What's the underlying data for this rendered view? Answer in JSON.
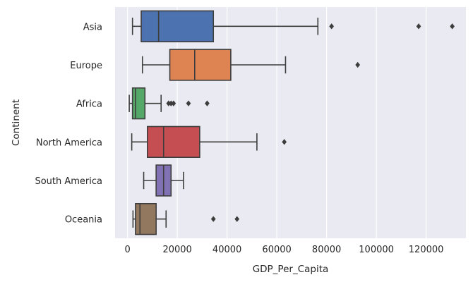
{
  "chart_data": {
    "type": "box",
    "orientation": "horizontal",
    "xlabel": "GDP_Per_Capita",
    "ylabel": "Continent",
    "xlim": [
      -5000,
      136000
    ],
    "xticks": [
      0,
      20000,
      40000,
      60000,
      80000,
      100000,
      120000
    ],
    "grid": true,
    "background_color": "#eaeaf2",
    "categories": [
      "Asia",
      "Europe",
      "Africa",
      "North America",
      "South America",
      "Oceania"
    ],
    "series": [
      {
        "category": "Asia",
        "color": "#4c72b0",
        "whisker_low": 2000,
        "q1": 5500,
        "median": 12500,
        "q3": 34500,
        "whisker_high": 76500,
        "outliers": [
          82000,
          117000,
          130500
        ]
      },
      {
        "category": "Europe",
        "color": "#dd8452",
        "whisker_low": 6000,
        "q1": 17000,
        "median": 27000,
        "q3": 41500,
        "whisker_high": 63500,
        "outliers": [
          92500
        ]
      },
      {
        "category": "Africa",
        "color": "#55a868",
        "whisker_low": 700,
        "q1": 2000,
        "median": 3200,
        "q3": 7000,
        "whisker_high": 13500,
        "outliers": [
          16500,
          17500,
          18500,
          24500,
          32000
        ]
      },
      {
        "category": "North America",
        "color": "#c44e52",
        "whisker_low": 1700,
        "q1": 8000,
        "median": 14500,
        "q3": 29000,
        "whisker_high": 52000,
        "outliers": [
          63000
        ]
      },
      {
        "category": "South America",
        "color": "#8172b3",
        "whisker_low": 6500,
        "q1": 11500,
        "median": 14500,
        "q3": 17500,
        "whisker_high": 22500,
        "outliers": []
      },
      {
        "category": "Oceania",
        "color": "#937860",
        "whisker_low": 2200,
        "q1": 3200,
        "median": 5000,
        "q3": 11500,
        "whisker_high": 15500,
        "outliers": [
          34500,
          44000
        ]
      }
    ]
  }
}
